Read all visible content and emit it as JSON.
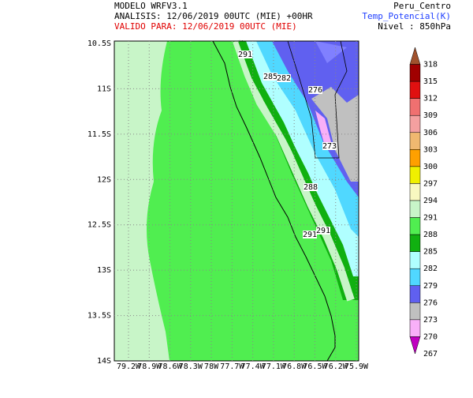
{
  "header": {
    "model": "MODELO WRFV3.1",
    "analysis": "ANALISIS: 12/06/2019 00UTC (MIE) +00HR",
    "valid": "VALIDO PARA: 12/06/2019 00UTC (MIE)",
    "domain": "Peru_Centro",
    "variable": "Temp_Potencial(K)",
    "level": "Nivel : 850hPa"
  },
  "map": {
    "lat_labels": [
      "10.5S",
      "11S",
      "11.5S",
      "12S",
      "12.5S",
      "13S",
      "13.5S",
      "14S"
    ],
    "lon_labels": [
      "79.2W",
      "78.9W",
      "78.6W",
      "78.3W",
      "78W",
      "77.7W",
      "77.4W",
      "77.1W",
      "76.8W",
      "76.5W",
      "76.2W",
      "75.9W"
    ],
    "contour_labels": [
      "291",
      "285",
      "282",
      "276",
      "273",
      "288",
      "291",
      "291"
    ]
  },
  "colorbar": {
    "levels": [
      {
        "label": "318",
        "color": "#a0522d"
      },
      {
        "label": "315",
        "color": "#a00000"
      },
      {
        "label": "312",
        "color": "#e01010"
      },
      {
        "label": "309",
        "color": "#f07070"
      },
      {
        "label": "306",
        "color": "#f4a0a0"
      },
      {
        "label": "303",
        "color": "#f0b870"
      },
      {
        "label": "300",
        "color": "#ffa000"
      },
      {
        "label": "297",
        "color": "#f0f000"
      },
      {
        "label": "294",
        "color": "#f8f8c0"
      },
      {
        "label": "291",
        "color": "#c8f5c8"
      },
      {
        "label": "288",
        "color": "#50ee50"
      },
      {
        "label": "285",
        "color": "#10b010"
      },
      {
        "label": "282",
        "color": "#b0ffff"
      },
      {
        "label": "279",
        "color": "#50d8ff"
      },
      {
        "label": "276",
        "color": "#6060f0"
      },
      {
        "label": "273",
        "color": "#c0c0c0"
      },
      {
        "label": "270",
        "color": "#f8b0f8"
      },
      {
        "label": "267",
        "color": "#c000c0"
      }
    ]
  }
}
